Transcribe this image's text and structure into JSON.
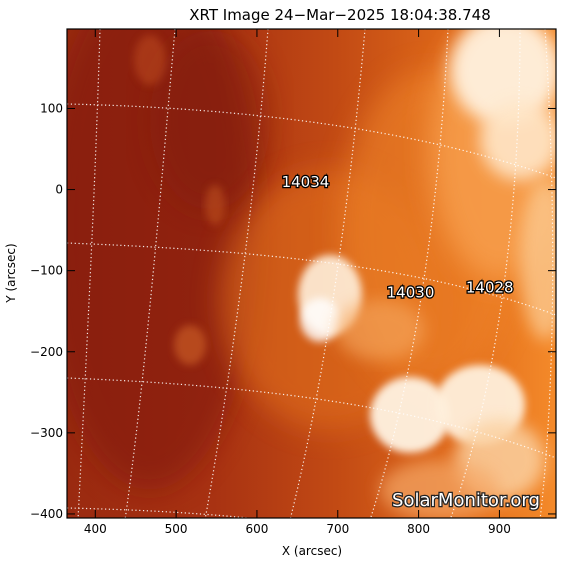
{
  "title": "XRT Image 24−Mar−2025 18:04:38.748",
  "xlabel": "X (arcsec)",
  "ylabel": "Y (arcsec)",
  "watermark": "SolarMonitor.org",
  "xrange": [
    365,
    970
  ],
  "yrange": [
    -405,
    198
  ],
  "x_ticks": [
    {
      "value": 400,
      "label": "400"
    },
    {
      "value": 500,
      "label": "500"
    },
    {
      "value": 600,
      "label": "600"
    },
    {
      "value": 700,
      "label": "700"
    },
    {
      "value": 800,
      "label": "800"
    },
    {
      "value": 900,
      "label": "900"
    }
  ],
  "y_ticks": [
    {
      "value": 100,
      "label": "100"
    },
    {
      "value": 0,
      "label": "0"
    },
    {
      "value": -100,
      "label": "−100"
    },
    {
      "value": -200,
      "label": "−200"
    },
    {
      "value": -300,
      "label": "−300"
    },
    {
      "value": -400,
      "label": "−400"
    }
  ],
  "regions": [
    {
      "label": "14034",
      "x": 660,
      "y": 3
    },
    {
      "label": "14030",
      "x": 790,
      "y": -133
    },
    {
      "label": "14028",
      "x": 888,
      "y": -127
    }
  ],
  "colors": {
    "dark": "#8a1a0c",
    "mid": "#c8420f",
    "bright": "#f07a1e",
    "hot": "#ffe6c8",
    "grid": "#ffffff"
  }
}
